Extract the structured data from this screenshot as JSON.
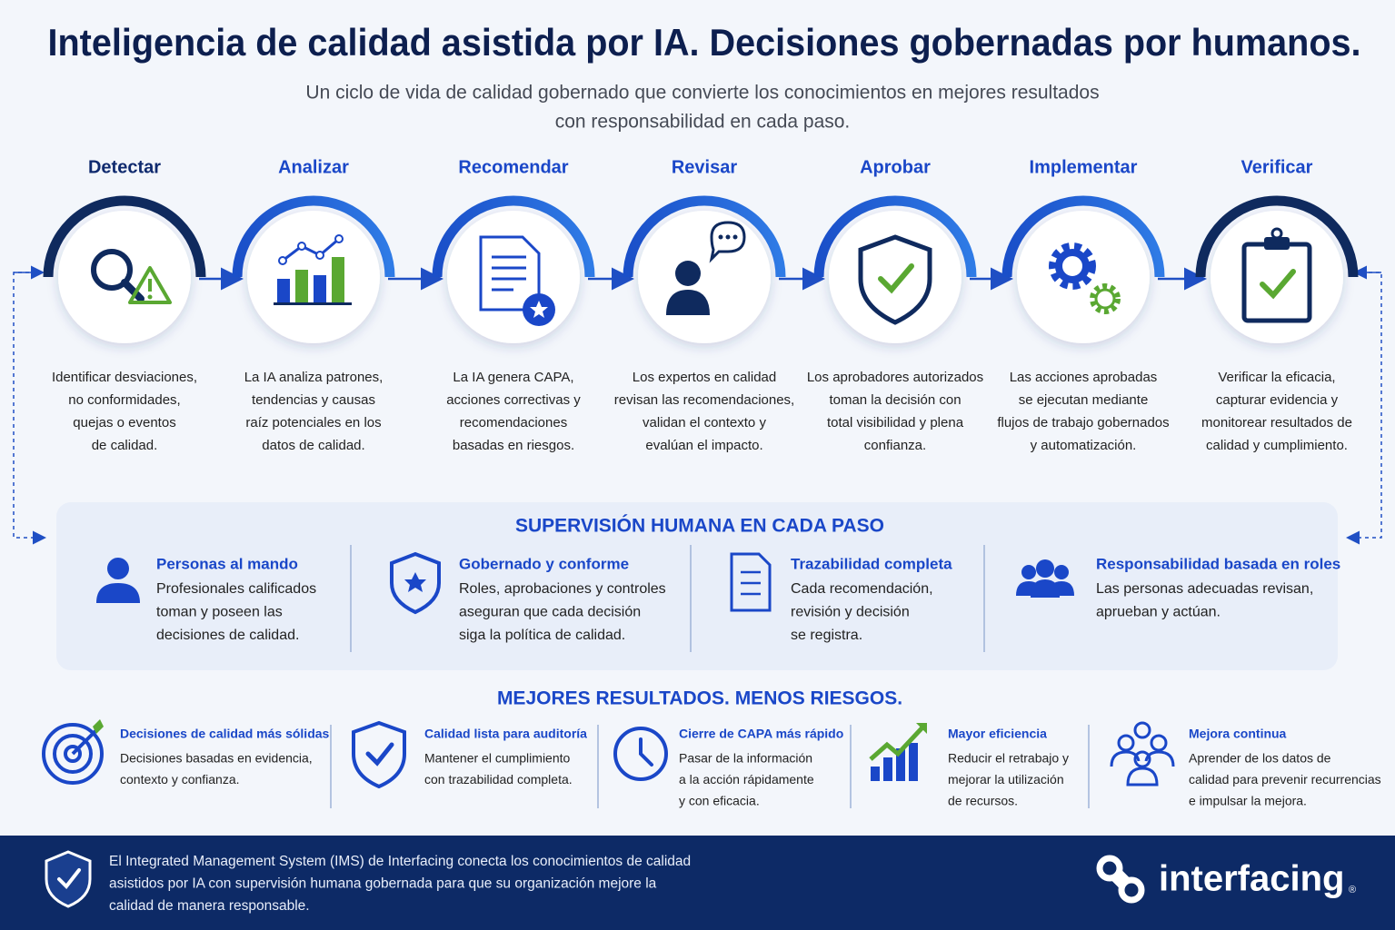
{
  "header": {
    "title": "Inteligencia de calidad asistida por IA. Decisiones gobernadas por humanos.",
    "subtitle": [
      "Un ciclo de vida de calidad gobernado que convierte los conocimientos en mejores resultados",
      "con responsabilidad en cada paso."
    ]
  },
  "steps": [
    {
      "title": "Detectar",
      "lines": [
        "Identificar desviaciones,",
        "no conformidades,",
        "quejas o eventos",
        "de calidad."
      ]
    },
    {
      "title": "Analizar",
      "lines": [
        "La IA analiza patrones,",
        "tendencias y causas",
        "raíz potenciales en los",
        "datos de calidad."
      ]
    },
    {
      "title": "Recomendar",
      "lines": [
        "La IA genera CAPA,",
        "acciones correctivas y",
        "recomendaciones",
        "basadas en riesgos."
      ]
    },
    {
      "title": "Revisar",
      "lines": [
        "Los expertos en calidad",
        "revisan las recomendaciones,",
        "validan el contexto y",
        "evalúan el impacto."
      ]
    },
    {
      "title": "Aprobar",
      "lines": [
        "Los aprobadores autorizados",
        "toman la decisión con",
        "total visibilidad y plena",
        "confianza."
      ]
    },
    {
      "title": "Implementar",
      "lines": [
        "Las acciones aprobadas",
        "se ejecutan mediante",
        "flujos de trabajo gobernados",
        "y automatización."
      ]
    },
    {
      "title": "Verificar",
      "lines": [
        "Verificar la eficacia,",
        "capturar evidencia y",
        "monitorear resultados de",
        "calidad y cumplimiento."
      ]
    }
  ],
  "oversight": {
    "title": "SUPERVISIÓN HUMANA EN CADA PASO",
    "items": [
      {
        "title": "Personas al mando",
        "lines": [
          "Profesionales calificados",
          "toman y poseen las",
          "decisiones de calidad."
        ]
      },
      {
        "title": "Gobernado y conforme",
        "lines": [
          "Roles, aprobaciones y controles",
          "aseguran que cada decisión",
          "siga la política de calidad."
        ]
      },
      {
        "title": "Trazabilidad completa",
        "lines": [
          "Cada recomendación,",
          "revisión y decisión",
          "se registra."
        ]
      },
      {
        "title": "Responsabilidad basada en roles",
        "lines": [
          "Las personas adecuadas revisan,",
          "aprueban y actúan."
        ]
      }
    ]
  },
  "results": {
    "title": "MEJORES RESULTADOS. MENOS RIESGOS.",
    "items": [
      {
        "title": "Decisiones de calidad más sólidas",
        "lines": [
          "Decisiones basadas en evidencia,",
          "contexto y confianza."
        ]
      },
      {
        "title": "Calidad lista para auditoría",
        "lines": [
          "Mantener el cumplimiento",
          "con trazabilidad completa."
        ]
      },
      {
        "title": "Cierre de CAPA más rápido",
        "lines": [
          "Pasar de la información",
          "a la acción rápidamente",
          "y con eficacia."
        ]
      },
      {
        "title": "Mayor eficiencia",
        "lines": [
          "Reducir el retrabajo y",
          "mejorar la utilización",
          "de recursos."
        ]
      },
      {
        "title": "Mejora continua",
        "lines": [
          "Aprender de los datos de",
          "calidad para prevenir recurrencias",
          "e impulsar la mejora."
        ]
      }
    ]
  },
  "footer": {
    "lines": [
      "El Integrated Management System (IMS) de Interfacing conecta los conocimientos de calidad",
      "asistidos por IA con supervisión humana gobernada para que su organización mejore la",
      "calidad de manera responsable."
    ],
    "brand": "interfacing",
    "brand_mark": "®"
  }
}
